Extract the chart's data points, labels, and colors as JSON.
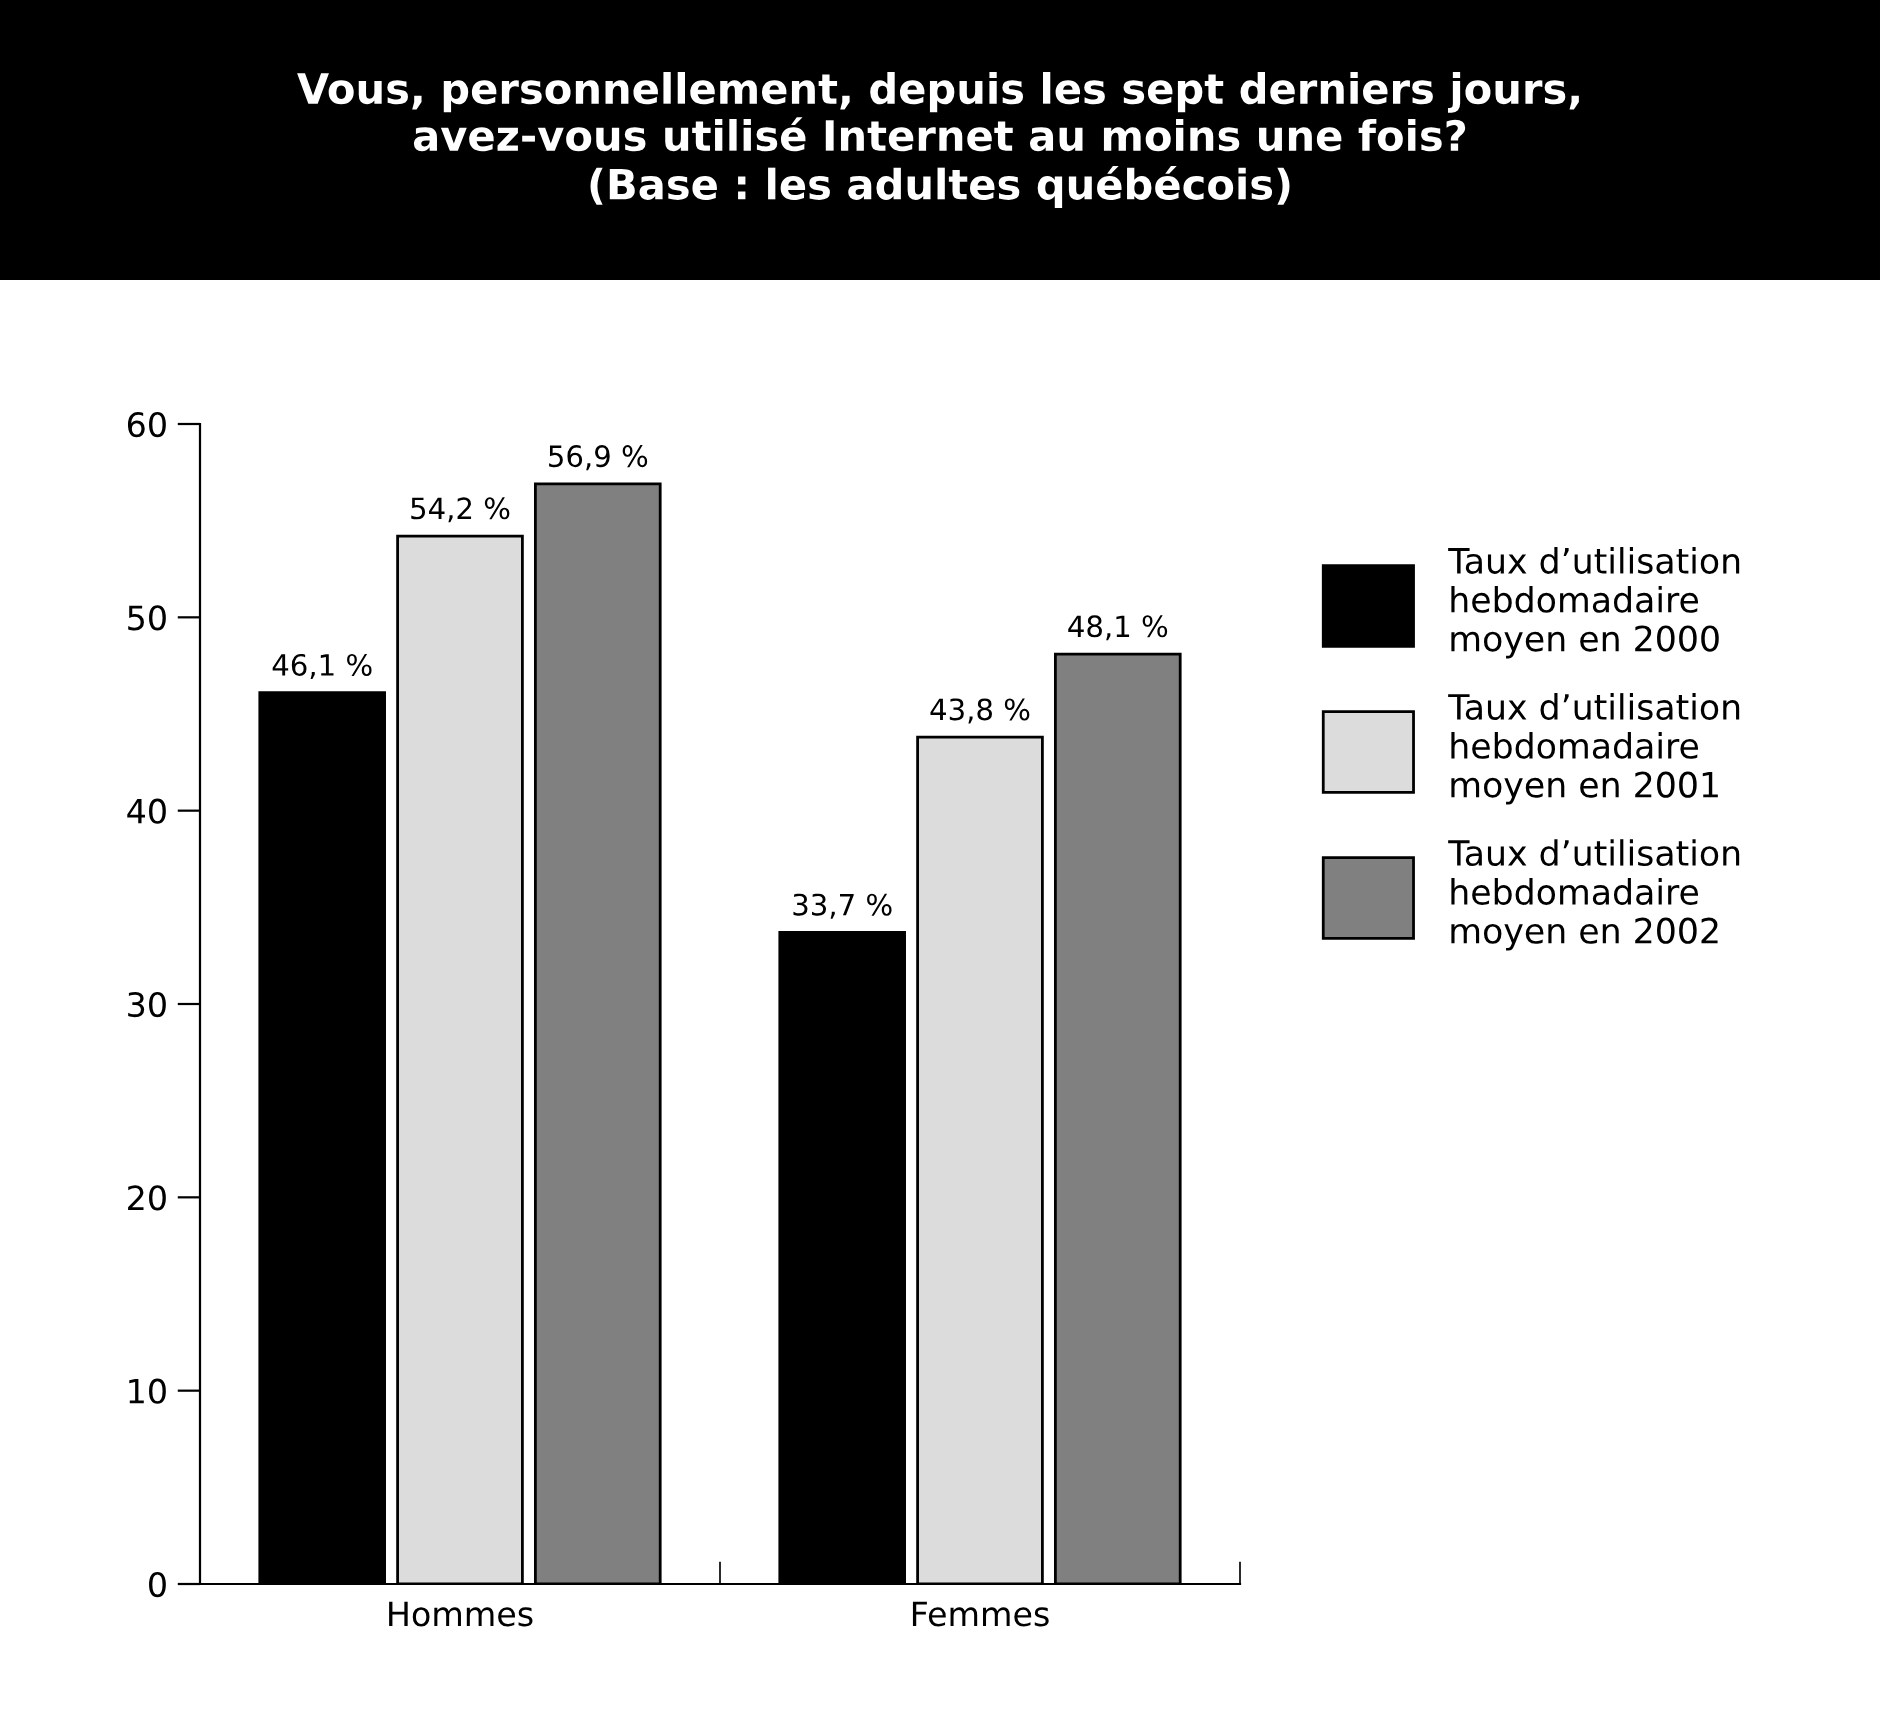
{
  "chart_data": {
    "type": "bar",
    "title": "Vous, personnellement, depuis les sept derniers jours,\navez-vous utilisé Internet au moins une fois?\n(Base : les adultes québécois)",
    "categories": [
      "Hommes",
      "Femmes"
    ],
    "series": [
      {
        "name": "Taux d’utilisation\nhebdomadaire\nmoyen en 2000",
        "color": "#000000",
        "values": [
          46.1,
          33.7
        ],
        "value_labels": [
          "46,1 %",
          "33,7 %"
        ]
      },
      {
        "name": "Taux d’utilisation\nhebdomadaire\nmoyen en 2001",
        "color": "#dcdcdc",
        "values": [
          54.2,
          43.8
        ],
        "value_labels": [
          "54,2 %",
          "43,8 %"
        ]
      },
      {
        "name": "Taux d’utilisation\nhebdomadaire\nmoyen en 2002",
        "color": "#808080",
        "values": [
          56.9,
          48.1
        ],
        "value_labels": [
          "56,9 %",
          "48,1 %"
        ]
      }
    ],
    "ylim": [
      0,
      60
    ],
    "yticks": [
      0,
      10,
      20,
      30,
      40,
      50,
      60
    ],
    "grid": false,
    "legend": "right"
  }
}
